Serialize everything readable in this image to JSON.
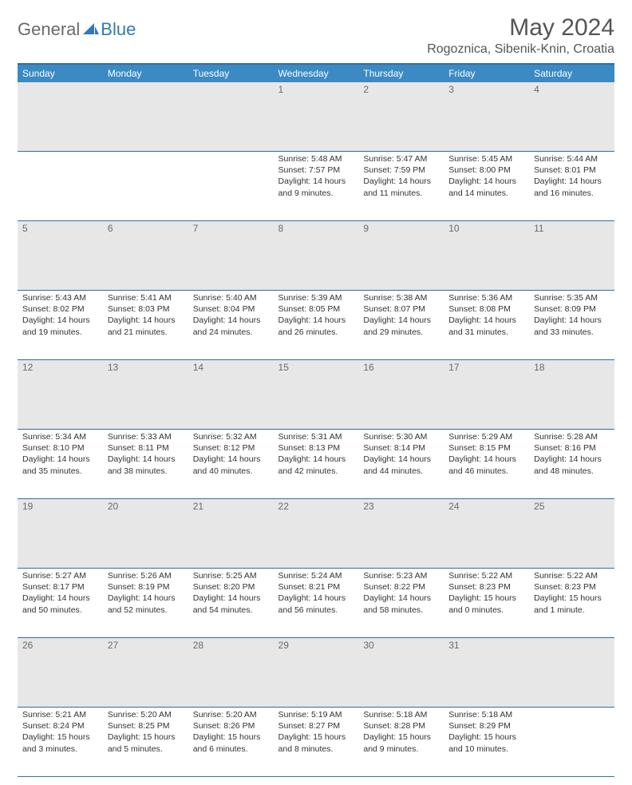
{
  "logo": {
    "part1": "General",
    "part2": "Blue"
  },
  "title": "May 2024",
  "location": "Rogoznica, Sibenik-Knin, Croatia",
  "colors": {
    "header_bg": "#3b8ac4",
    "header_text": "#ffffff",
    "daynum_bg": "#e7e7e7",
    "rule": "#2f6fa3",
    "logo_gray": "#6a6a6a",
    "logo_blue": "#2f79b9"
  },
  "weekdays": [
    "Sunday",
    "Monday",
    "Tuesday",
    "Wednesday",
    "Thursday",
    "Friday",
    "Saturday"
  ],
  "weeks": [
    [
      null,
      null,
      null,
      {
        "n": "1",
        "sr": "5:48 AM",
        "ss": "7:57 PM",
        "dl": "14 hours and 9 minutes."
      },
      {
        "n": "2",
        "sr": "5:47 AM",
        "ss": "7:59 PM",
        "dl": "14 hours and 11 minutes."
      },
      {
        "n": "3",
        "sr": "5:45 AM",
        "ss": "8:00 PM",
        "dl": "14 hours and 14 minutes."
      },
      {
        "n": "4",
        "sr": "5:44 AM",
        "ss": "8:01 PM",
        "dl": "14 hours and 16 minutes."
      }
    ],
    [
      {
        "n": "5",
        "sr": "5:43 AM",
        "ss": "8:02 PM",
        "dl": "14 hours and 19 minutes."
      },
      {
        "n": "6",
        "sr": "5:41 AM",
        "ss": "8:03 PM",
        "dl": "14 hours and 21 minutes."
      },
      {
        "n": "7",
        "sr": "5:40 AM",
        "ss": "8:04 PM",
        "dl": "14 hours and 24 minutes."
      },
      {
        "n": "8",
        "sr": "5:39 AM",
        "ss": "8:05 PM",
        "dl": "14 hours and 26 minutes."
      },
      {
        "n": "9",
        "sr": "5:38 AM",
        "ss": "8:07 PM",
        "dl": "14 hours and 29 minutes."
      },
      {
        "n": "10",
        "sr": "5:36 AM",
        "ss": "8:08 PM",
        "dl": "14 hours and 31 minutes."
      },
      {
        "n": "11",
        "sr": "5:35 AM",
        "ss": "8:09 PM",
        "dl": "14 hours and 33 minutes."
      }
    ],
    [
      {
        "n": "12",
        "sr": "5:34 AM",
        "ss": "8:10 PM",
        "dl": "14 hours and 35 minutes."
      },
      {
        "n": "13",
        "sr": "5:33 AM",
        "ss": "8:11 PM",
        "dl": "14 hours and 38 minutes."
      },
      {
        "n": "14",
        "sr": "5:32 AM",
        "ss": "8:12 PM",
        "dl": "14 hours and 40 minutes."
      },
      {
        "n": "15",
        "sr": "5:31 AM",
        "ss": "8:13 PM",
        "dl": "14 hours and 42 minutes."
      },
      {
        "n": "16",
        "sr": "5:30 AM",
        "ss": "8:14 PM",
        "dl": "14 hours and 44 minutes."
      },
      {
        "n": "17",
        "sr": "5:29 AM",
        "ss": "8:15 PM",
        "dl": "14 hours and 46 minutes."
      },
      {
        "n": "18",
        "sr": "5:28 AM",
        "ss": "8:16 PM",
        "dl": "14 hours and 48 minutes."
      }
    ],
    [
      {
        "n": "19",
        "sr": "5:27 AM",
        "ss": "8:17 PM",
        "dl": "14 hours and 50 minutes."
      },
      {
        "n": "20",
        "sr": "5:26 AM",
        "ss": "8:19 PM",
        "dl": "14 hours and 52 minutes."
      },
      {
        "n": "21",
        "sr": "5:25 AM",
        "ss": "8:20 PM",
        "dl": "14 hours and 54 minutes."
      },
      {
        "n": "22",
        "sr": "5:24 AM",
        "ss": "8:21 PM",
        "dl": "14 hours and 56 minutes."
      },
      {
        "n": "23",
        "sr": "5:23 AM",
        "ss": "8:22 PM",
        "dl": "14 hours and 58 minutes."
      },
      {
        "n": "24",
        "sr": "5:22 AM",
        "ss": "8:23 PM",
        "dl": "15 hours and 0 minutes."
      },
      {
        "n": "25",
        "sr": "5:22 AM",
        "ss": "8:23 PM",
        "dl": "15 hours and 1 minute."
      }
    ],
    [
      {
        "n": "26",
        "sr": "5:21 AM",
        "ss": "8:24 PM",
        "dl": "15 hours and 3 minutes."
      },
      {
        "n": "27",
        "sr": "5:20 AM",
        "ss": "8:25 PM",
        "dl": "15 hours and 5 minutes."
      },
      {
        "n": "28",
        "sr": "5:20 AM",
        "ss": "8:26 PM",
        "dl": "15 hours and 6 minutes."
      },
      {
        "n": "29",
        "sr": "5:19 AM",
        "ss": "8:27 PM",
        "dl": "15 hours and 8 minutes."
      },
      {
        "n": "30",
        "sr": "5:18 AM",
        "ss": "8:28 PM",
        "dl": "15 hours and 9 minutes."
      },
      {
        "n": "31",
        "sr": "5:18 AM",
        "ss": "8:29 PM",
        "dl": "15 hours and 10 minutes."
      },
      null
    ]
  ],
  "labels": {
    "sunrise": "Sunrise:",
    "sunset": "Sunset:",
    "daylight": "Daylight:"
  }
}
